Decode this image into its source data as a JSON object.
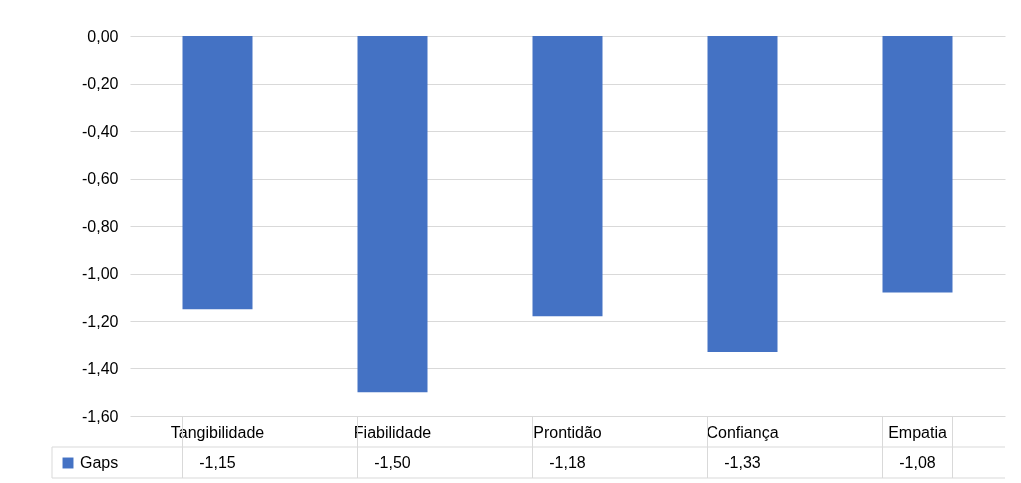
{
  "chart_data": {
    "type": "bar",
    "categories": [
      "Tangibilidade",
      "Fiabilidade",
      "Prontidão",
      "Confiança",
      "Empatia"
    ],
    "series": [
      {
        "name": "Gaps",
        "color": "#4472c4",
        "values": [
          -1.15,
          -1.5,
          -1.18,
          -1.33,
          -1.08
        ],
        "value_labels": [
          "-1,15",
          "-1,50",
          "-1,18",
          "-1,33",
          "-1,08"
        ]
      }
    ],
    "ylim": [
      -1.6,
      0
    ],
    "yticks": [
      {
        "value": 0,
        "label": "0,00"
      },
      {
        "value": -0.2,
        "label": "-0,20"
      },
      {
        "value": -0.4,
        "label": "-0,40"
      },
      {
        "value": -0.6,
        "label": "-0,60"
      },
      {
        "value": -0.8,
        "label": "-0,80"
      },
      {
        "value": -1,
        "label": "-1,00"
      },
      {
        "value": -1.2,
        "label": "-1,20"
      },
      {
        "value": -1.4,
        "label": "-1,40"
      },
      {
        "value": -1.6,
        "label": "-1,60"
      }
    ],
    "grid": "y",
    "legend": "bottom left"
  }
}
